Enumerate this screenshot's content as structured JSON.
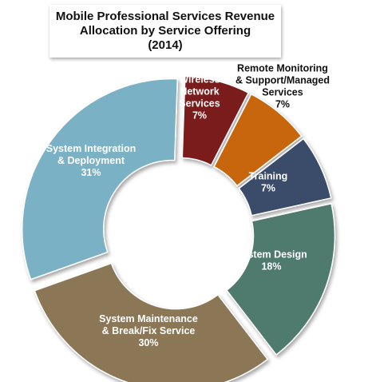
{
  "chart_data": {
    "type": "pie",
    "donut": true,
    "title_lines": [
      "Mobile Professional Services Revenue",
      "Allocation by Service Offering",
      "(2014)"
    ],
    "slices": [
      {
        "label_lines": [
          "Wireless",
          "Network",
          "Services"
        ],
        "percent_label": "7%",
        "value": 7,
        "color": "#7a1c1c",
        "label_color": "#ffffff"
      },
      {
        "label_lines": [
          "Remote Monitoring",
          "& Support/Managed",
          "Services"
        ],
        "percent_label": "7%",
        "value": 7,
        "color": "#c8660e",
        "label_color": "#111111"
      },
      {
        "label_lines": [
          "Training"
        ],
        "percent_label": "7%",
        "value": 7,
        "color": "#3b4c6b",
        "label_color": "#ffffff"
      },
      {
        "label_lines": [
          "System Design"
        ],
        "percent_label": "18%",
        "value": 18,
        "color": "#4f7a6e",
        "label_color": "#ffffff"
      },
      {
        "label_lines": [
          "System Maintenance",
          "& Break/Fix Service"
        ],
        "percent_label": "30%",
        "value": 30,
        "color": "#8b7755",
        "label_color": "#ffffff"
      },
      {
        "label_lines": [
          "System Integration",
          "& Deployment"
        ],
        "percent_label": "31%",
        "value": 31,
        "color": "#7ab1c4",
        "label_color": "#ffffff"
      }
    ]
  }
}
